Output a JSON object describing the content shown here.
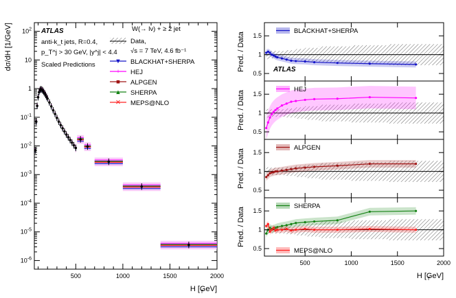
{
  "chart_data": [
    {
      "type": "scatter",
      "panel": "main",
      "yscale": "log",
      "xlim": [
        60,
        2000
      ],
      "ylim": [
        5e-07,
        200
      ],
      "xlabel": "H_T [GeV]",
      "ylabel": "dσ_{W+≥2j}/dH_T [1/GeV]",
      "xticks": [
        "500",
        "1000",
        "1500",
        "2000"
      ],
      "yticks": [
        "10^-6",
        "10^-5",
        "10^-4",
        "10^-3",
        "10^-2",
        "10^-1",
        "1",
        "10",
        "10^2"
      ],
      "atlas_label": "ATLAS",
      "annotations": [
        "anti-k_t jets, R=0.4,",
        "p_T^j > 30 GeV, |y^j| < 4.4",
        "Scaled Predictions"
      ],
      "legend_title": "W(→ lν) + ≥ 2 jet",
      "legend_entries": [
        "Data,",
        "√s = 7 TeV, 4.6 fb⁻¹",
        "BLACKHAT+SHERPA",
        "HEJ",
        "ALPGEN",
        "SHERPA",
        "MEPS@NLO"
      ],
      "data": {
        "x": [
          70,
          80,
          90,
          100,
          110,
          120,
          130,
          140,
          150,
          160,
          170,
          180,
          190,
          200,
          220,
          240,
          260,
          280,
          300,
          320,
          340,
          360,
          380,
          400,
          420,
          440,
          460,
          480,
          500,
          550,
          625,
          850,
          1200,
          1700
        ],
        "y": [
          0.007,
          0.07,
          0.25,
          0.5,
          0.75,
          0.9,
          0.95,
          0.92,
          0.85,
          0.77,
          0.68,
          0.6,
          0.52,
          0.45,
          0.33,
          0.24,
          0.175,
          0.13,
          0.095,
          0.07,
          0.053,
          0.041,
          0.032,
          0.025,
          0.02,
          0.016,
          0.013,
          0.0105,
          0.0085,
          0.017,
          0.0095,
          0.0028,
          0.00038,
          3.5e-06
        ]
      },
      "series": [
        {
          "name": "BLACKHAT+SHERPA",
          "color": "#1414c8",
          "scale": 0.85
        },
        {
          "name": "HEJ",
          "color": "#ff00ff",
          "scale": 1.15
        },
        {
          "name": "ALPGEN",
          "color": "#a01414",
          "scale": 1.0
        },
        {
          "name": "SHERPA",
          "color": "#148214",
          "scale": 1.05
        },
        {
          "name": "MEPS@NLO",
          "color": "#ff2020",
          "scale": 0.95
        }
      ]
    },
    {
      "type": "line",
      "panel": "ratio",
      "xlim": [
        60,
        2000
      ],
      "xlabel": "H_T [GeV]",
      "ylabel": "Pred. / Data",
      "xticks": [
        "500",
        "1000",
        "1500",
        "2000"
      ],
      "atlas_label": "ATLAS",
      "panels": [
        {
          "ylim": [
            0.3,
            1.85
          ],
          "yticks": [
            "0.5",
            "1",
            "1.5"
          ],
          "data_unc_lo": [
            0.94,
            0.92,
            0.9,
            0.9,
            0.9,
            0.88,
            0.87,
            0.85,
            0.83,
            0.82,
            0.8,
            0.78,
            0.75,
            0.72,
            0.68
          ],
          "series": [
            {
              "name": "BLACKHAT+SHERPA",
              "color": "#1414c8",
              "x": [
                80,
                100,
                120,
                140,
                160,
                180,
                200,
                250,
                300,
                350,
                400,
                500,
                600,
                850,
                1200,
                1700
              ],
              "y": [
                1.05,
                1.08,
                1.05,
                1.0,
                0.98,
                0.95,
                0.93,
                0.9,
                0.87,
                0.84,
                0.83,
                0.82,
                0.8,
                0.78,
                0.76,
                0.74
              ],
              "band": 0.08
            }
          ]
        },
        {
          "ylim": [
            0.3,
            1.85
          ],
          "yticks": [
            "0.5",
            "1",
            "1.5"
          ],
          "series": [
            {
              "name": "HEJ",
              "color": "#ff00ff",
              "x": [
                80,
                100,
                120,
                140,
                160,
                180,
                200,
                250,
                300,
                350,
                400,
                500,
                600,
                850,
                1200,
                1700
              ],
              "y": [
                0.6,
                0.75,
                0.88,
                0.97,
                1.03,
                1.08,
                1.12,
                1.2,
                1.25,
                1.3,
                1.32,
                1.35,
                1.37,
                1.38,
                1.42,
                1.4
              ],
              "band": 0.3
            }
          ]
        },
        {
          "ylim": [
            0.3,
            1.85
          ],
          "yticks": [
            "0.5",
            "1",
            "1.5"
          ],
          "series": [
            {
              "name": "ALPGEN",
              "color": "#a01414",
              "x": [
                80,
                100,
                120,
                140,
                160,
                180,
                200,
                250,
                300,
                350,
                400,
                500,
                600,
                850,
                1200,
                1700
              ],
              "y": [
                0.85,
                0.9,
                0.95,
                0.97,
                0.98,
                1.0,
                1.0,
                1.02,
                1.04,
                1.06,
                1.08,
                1.1,
                1.12,
                1.15,
                1.2,
                1.2
              ],
              "band": 0.1
            }
          ]
        },
        {
          "ylim": [
            0.3,
            1.85
          ],
          "yticks": [
            "0.5",
            "1",
            "1.5"
          ],
          "series": [
            {
              "name": "SHERPA",
              "color": "#148214",
              "x": [
                80,
                100,
                120,
                140,
                160,
                180,
                200,
                250,
                300,
                350,
                400,
                500,
                600,
                850,
                1200,
                1700
              ],
              "y": [
                0.9,
                1.0,
                1.05,
                1.02,
                1.03,
                1.05,
                1.07,
                1.1,
                1.12,
                1.15,
                1.18,
                1.2,
                1.22,
                1.25,
                1.48,
                1.5
              ],
              "band": 0.1
            },
            {
              "name": "MEPS@NLO",
              "color": "#ff2020",
              "x": [
                80,
                100,
                120,
                140,
                160,
                180,
                200,
                250,
                300,
                350,
                400,
                500,
                600,
                850,
                1200,
                1700
              ],
              "y": [
                1.1,
                1.15,
                0.95,
                1.0,
                1.05,
                0.98,
                1.0,
                1.0,
                1.02,
                0.98,
                1.0,
                1.02,
                1.0,
                1.0,
                1.02,
                1.0
              ],
              "band": 0.08
            }
          ]
        }
      ]
    }
  ]
}
